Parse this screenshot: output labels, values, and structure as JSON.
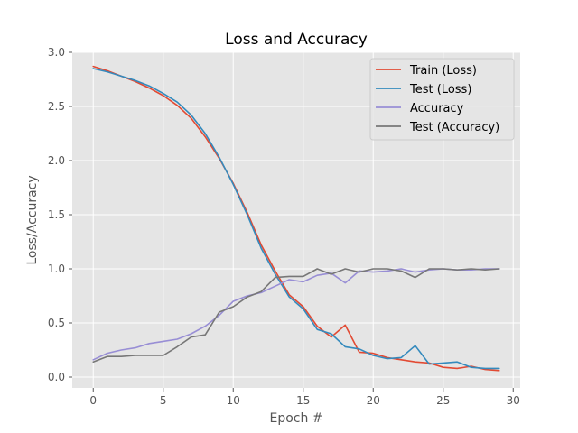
{
  "chart_data": {
    "type": "line",
    "title": "Loss and Accuracy",
    "xlabel": "Epoch #",
    "ylabel": "Loss/Accuracy",
    "xlim": [
      -1.5,
      30.5
    ],
    "ylim": [
      -0.1,
      3.0
    ],
    "xticks": [
      0,
      5,
      10,
      15,
      20,
      25,
      30
    ],
    "yticks": [
      0.0,
      0.5,
      1.0,
      1.5,
      2.0,
      2.5,
      3.0
    ],
    "xtick_labels": [
      "0",
      "5",
      "10",
      "15",
      "20",
      "25",
      "30"
    ],
    "ytick_labels": [
      "0.0",
      "0.5",
      "1.0",
      "1.5",
      "2.0",
      "2.5",
      "3.0"
    ],
    "grid": true,
    "legend_position": "top-right",
    "x": [
      0,
      1,
      2,
      3,
      4,
      5,
      6,
      7,
      8,
      9,
      10,
      11,
      12,
      13,
      14,
      15,
      16,
      17,
      18,
      19,
      20,
      21,
      22,
      23,
      24,
      25,
      26,
      27,
      28,
      29
    ],
    "series": [
      {
        "name": "Train (Loss)",
        "color": "#e24a33",
        "values": [
          2.87,
          2.83,
          2.78,
          2.73,
          2.67,
          2.6,
          2.51,
          2.39,
          2.22,
          2.02,
          1.79,
          1.52,
          1.22,
          0.98,
          0.76,
          0.65,
          0.47,
          0.37,
          0.48,
          0.23,
          0.22,
          0.18,
          0.16,
          0.14,
          0.13,
          0.09,
          0.08,
          0.1,
          0.07,
          0.06
        ]
      },
      {
        "name": "Test (Loss)",
        "color": "#348abd",
        "values": [
          2.85,
          2.82,
          2.78,
          2.74,
          2.69,
          2.62,
          2.54,
          2.42,
          2.25,
          2.03,
          1.78,
          1.5,
          1.19,
          0.95,
          0.74,
          0.63,
          0.44,
          0.4,
          0.28,
          0.26,
          0.2,
          0.17,
          0.18,
          0.29,
          0.12,
          0.13,
          0.14,
          0.09,
          0.08,
          0.08
        ]
      },
      {
        "name": "Accuracy",
        "color": "#988ed5",
        "values": [
          0.16,
          0.22,
          0.25,
          0.27,
          0.31,
          0.33,
          0.35,
          0.4,
          0.47,
          0.57,
          0.7,
          0.75,
          0.78,
          0.84,
          0.9,
          0.88,
          0.94,
          0.96,
          0.87,
          0.98,
          0.97,
          0.98,
          1.0,
          0.97,
          0.99,
          1.0,
          0.99,
          0.99,
          1.0,
          1.0
        ]
      },
      {
        "name": "Test (Accuracy)",
        "color": "#777777",
        "values": [
          0.14,
          0.19,
          0.19,
          0.2,
          0.2,
          0.2,
          0.28,
          0.37,
          0.39,
          0.6,
          0.65,
          0.74,
          0.79,
          0.92,
          0.93,
          0.93,
          1.0,
          0.95,
          1.0,
          0.97,
          1.0,
          1.0,
          0.98,
          0.92,
          1.0,
          1.0,
          0.99,
          1.0,
          0.99,
          1.0
        ]
      }
    ]
  }
}
